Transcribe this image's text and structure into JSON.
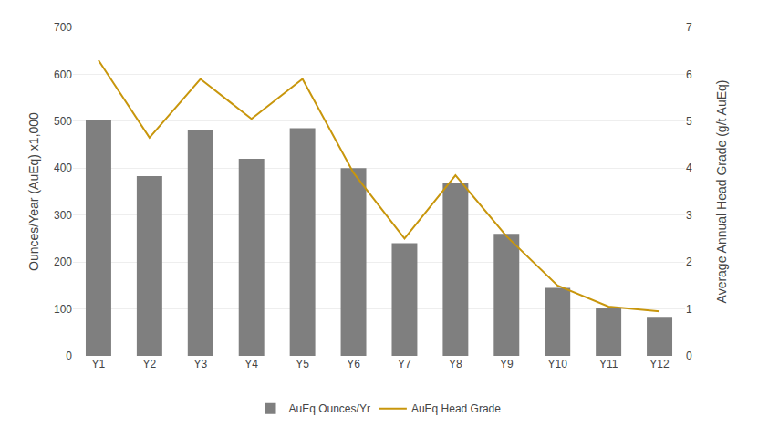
{
  "chart_data": {
    "type": "bar",
    "categories": [
      "Y1",
      "Y2",
      "Y3",
      "Y4",
      "Y5",
      "Y6",
      "Y7",
      "Y8",
      "Y9",
      "Y10",
      "Y11",
      "Y12"
    ],
    "series": [
      {
        "name": "AuEq Ounces/Yr",
        "type": "bar",
        "color": "#7F7F7F",
        "values": [
          502,
          383,
          482,
          420,
          485,
          400,
          240,
          368,
          260,
          145,
          103,
          83
        ]
      },
      {
        "name": "AuEq Head Grade",
        "type": "line",
        "color": "#C8960C",
        "axis": "y2",
        "values": [
          6.3,
          4.65,
          5.9,
          5.05,
          5.9,
          3.9,
          2.5,
          3.85,
          2.55,
          1.5,
          1.05,
          0.95
        ]
      }
    ],
    "ylabel": "Ounces/Year (AuEq) x1,000",
    "y2label": "Average Annual Head Grade (g/t AuEq)",
    "ylim": [
      0,
      700
    ],
    "yticks": [
      0,
      100,
      200,
      300,
      400,
      500,
      600,
      700
    ],
    "y2lim": [
      0,
      7
    ],
    "y2ticks": [
      0,
      1,
      2,
      3,
      4,
      5,
      6,
      7
    ],
    "grid": true,
    "legend": "bottom"
  }
}
